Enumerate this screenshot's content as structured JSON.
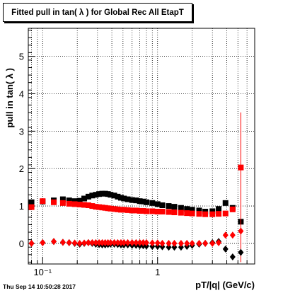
{
  "title": "Fitted pull in tan( λ ) for Global Rec All EtapT",
  "timestamp": "Thu Sep 14 10:50:28 2017",
  "chart_data": {
    "type": "scatter",
    "xlabel": "pT/|q| (GeV/c)",
    "ylabel": "pull in tan( λ )",
    "xscale": "log",
    "xlim": [
      0.075,
      7.0
    ],
    "ylim": [
      -0.55,
      5.75
    ],
    "grid": true,
    "xticks": [
      {
        "value": 0.1,
        "label": "10⁻¹"
      },
      {
        "value": 1,
        "label": "1"
      }
    ],
    "yticks": [
      0,
      1,
      2,
      3,
      4,
      5
    ],
    "series": [
      {
        "marker": "square",
        "color": "#000000",
        "x": [
          0.08,
          0.1,
          0.125,
          0.15,
          0.17,
          0.19,
          0.21,
          0.23,
          0.25,
          0.27,
          0.29,
          0.31,
          0.33,
          0.35,
          0.37,
          0.39,
          0.42,
          0.45,
          0.48,
          0.51,
          0.55,
          0.6,
          0.65,
          0.7,
          0.75,
          0.8,
          0.9,
          1.0,
          1.1,
          1.25,
          1.4,
          1.6,
          1.8,
          2.0,
          2.3,
          2.6,
          3.0,
          3.4,
          3.9,
          4.5,
          5.3
        ],
        "y": [
          1.1,
          1.12,
          1.15,
          1.18,
          1.15,
          1.13,
          1.14,
          1.2,
          1.25,
          1.28,
          1.3,
          1.32,
          1.33,
          1.33,
          1.32,
          1.3,
          1.28,
          1.25,
          1.22,
          1.2,
          1.18,
          1.16,
          1.15,
          1.13,
          1.12,
          1.1,
          1.08,
          1.05,
          1.02,
          1.0,
          0.98,
          0.95,
          0.92,
          0.9,
          0.88,
          0.85,
          0.86,
          0.92,
          1.08,
          0.95,
          0.58
        ]
      },
      {
        "marker": "square",
        "color": "#ff0000",
        "x": [
          0.08,
          0.1,
          0.125,
          0.15,
          0.17,
          0.19,
          0.21,
          0.23,
          0.25,
          0.27,
          0.29,
          0.31,
          0.33,
          0.35,
          0.37,
          0.39,
          0.42,
          0.45,
          0.48,
          0.51,
          0.55,
          0.6,
          0.65,
          0.7,
          0.75,
          0.8,
          0.9,
          1.0,
          1.1,
          1.25,
          1.4,
          1.6,
          1.8,
          2.0,
          2.3,
          2.6,
          3.0,
          3.4,
          3.9,
          4.5,
          5.3
        ],
        "y": [
          0.97,
          1.13,
          1.1,
          1.08,
          1.06,
          1.05,
          1.04,
          1.03,
          1.02,
          1.0,
          0.98,
          0.97,
          0.96,
          0.95,
          0.94,
          0.93,
          0.92,
          0.91,
          0.9,
          0.9,
          0.89,
          0.88,
          0.88,
          0.87,
          0.87,
          0.86,
          0.86,
          0.85,
          0.85,
          0.84,
          0.83,
          0.82,
          0.81,
          0.8,
          0.79,
          0.78,
          0.78,
          0.79,
          0.8,
          0.91,
          2.03
        ],
        "yerr_last": [
          -0.5,
          3.5
        ]
      },
      {
        "marker": "diamond",
        "color": "#000000",
        "x": [
          0.08,
          0.1,
          0.125,
          0.15,
          0.17,
          0.19,
          0.21,
          0.23,
          0.25,
          0.27,
          0.29,
          0.31,
          0.33,
          0.35,
          0.37,
          0.39,
          0.42,
          0.45,
          0.48,
          0.51,
          0.55,
          0.6,
          0.65,
          0.7,
          0.75,
          0.8,
          0.9,
          1.0,
          1.1,
          1.25,
          1.4,
          1.6,
          1.8,
          2.0,
          2.3,
          2.6,
          3.0,
          3.4,
          3.9,
          4.5,
          5.3
        ],
        "y": [
          0.0,
          0.02,
          0.05,
          0.03,
          0.02,
          0.0,
          -0.02,
          0.0,
          0.02,
          0.0,
          -0.02,
          -0.03,
          -0.04,
          -0.04,
          -0.03,
          -0.02,
          -0.02,
          -0.03,
          -0.04,
          -0.04,
          -0.04,
          -0.05,
          -0.05,
          -0.06,
          -0.06,
          -0.07,
          -0.08,
          -0.08,
          -0.09,
          -0.1,
          -0.1,
          -0.1,
          -0.08,
          -0.05,
          -0.02,
          0.0,
          0.02,
          0.05,
          -0.15,
          -0.36,
          -0.24
        ]
      },
      {
        "marker": "diamond",
        "color": "#ff0000",
        "x": [
          0.08,
          0.1,
          0.125,
          0.15,
          0.17,
          0.19,
          0.21,
          0.23,
          0.25,
          0.27,
          0.29,
          0.31,
          0.33,
          0.35,
          0.37,
          0.39,
          0.42,
          0.45,
          0.48,
          0.51,
          0.55,
          0.6,
          0.65,
          0.7,
          0.75,
          0.8,
          0.9,
          1.0,
          1.1,
          1.25,
          1.4,
          1.6,
          1.8,
          2.0,
          2.3,
          2.6,
          3.0,
          3.4,
          3.9,
          4.5,
          5.3
        ],
        "y": [
          0.0,
          0.02,
          0.05,
          0.03,
          0.02,
          0.01,
          0.0,
          0.01,
          0.02,
          0.02,
          0.02,
          0.02,
          0.02,
          0.02,
          0.02,
          0.02,
          0.02,
          0.02,
          0.02,
          0.02,
          0.02,
          0.02,
          0.02,
          0.02,
          0.02,
          0.02,
          0.01,
          0.01,
          0.0,
          0.0,
          0.0,
          0.0,
          0.0,
          0.0,
          0.0,
          0.0,
          0.0,
          0.02,
          0.22,
          0.22,
          0.33
        ]
      }
    ]
  }
}
